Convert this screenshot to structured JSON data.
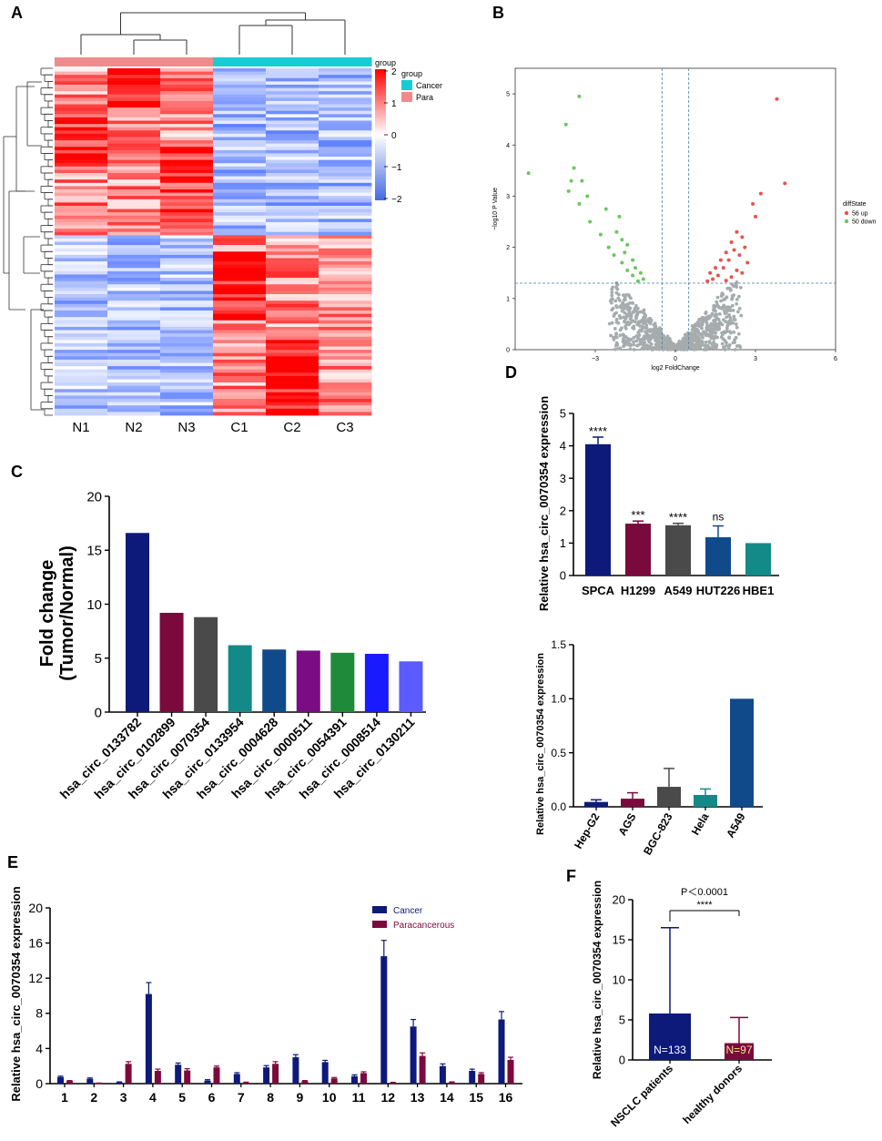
{
  "panels": {
    "A": "A",
    "B": "B",
    "C": "C",
    "D": "D",
    "E": "E",
    "F": "F"
  },
  "chart_data": [
    {
      "id": "A",
      "type": "heatmap",
      "columns": [
        "N1",
        "N2",
        "N3",
        "C1",
        "C2",
        "C3"
      ],
      "column_groups": [
        "Para",
        "Para",
        "Para",
        "Cancer",
        "Cancer",
        "Cancer"
      ],
      "legend_title": "group",
      "legend_entries": [
        "Cancer",
        "Para"
      ],
      "colorbar_title": "group",
      "colorbar_ticks": [
        "2",
        "1",
        "0",
        "−1",
        "−2"
      ],
      "colorbar_range": [
        -2,
        2
      ],
      "row_count": 106
    },
    {
      "id": "B",
      "type": "scatter",
      "xlabel": "log2 FoldChange",
      "ylabel": "−log10 P Value",
      "xlim": [
        -6,
        6
      ],
      "ylim": [
        0,
        5.5
      ],
      "xticks": [
        "−3",
        "0",
        "3",
        "6"
      ],
      "yticks": [
        "0",
        "1",
        "2",
        "3",
        "4",
        "5"
      ],
      "thresholds": {
        "x": [
          -0.5,
          0.5
        ],
        "y": 1.3
      },
      "legend_title": "diffState",
      "legend": [
        "56 up",
        "50 down"
      ],
      "colors": {
        "up": "#e8534f",
        "down": "#6cc65f",
        "ns": "#a6acad"
      },
      "up_points": [
        [
          3.8,
          4.9
        ],
        [
          4.1,
          3.25
        ],
        [
          3.2,
          3.05
        ],
        [
          2.9,
          2.85
        ],
        [
          3.0,
          2.6
        ],
        [
          2.3,
          2.3
        ],
        [
          2.5,
          2.2
        ],
        [
          2.1,
          2.1
        ],
        [
          2.6,
          2.0
        ],
        [
          2.2,
          1.95
        ],
        [
          1.9,
          1.9
        ],
        [
          2.4,
          1.85
        ],
        [
          2.0,
          1.75
        ],
        [
          1.7,
          1.75
        ],
        [
          2.7,
          1.7
        ],
        [
          1.5,
          1.6
        ],
        [
          1.8,
          1.6
        ],
        [
          2.3,
          1.55
        ],
        [
          1.3,
          1.5
        ],
        [
          1.6,
          1.45
        ],
        [
          2.1,
          1.42
        ],
        [
          1.4,
          1.38
        ],
        [
          1.9,
          1.35
        ],
        [
          2.5,
          1.5
        ],
        [
          1.2,
          1.34
        ]
      ],
      "down_points": [
        [
          -3.6,
          4.95
        ],
        [
          -4.1,
          4.4
        ],
        [
          -3.8,
          3.55
        ],
        [
          -5.5,
          3.45
        ],
        [
          -3.5,
          3.3
        ],
        [
          -3.9,
          3.3
        ],
        [
          -3.3,
          3.0
        ],
        [
          -4.0,
          3.1
        ],
        [
          -3.6,
          2.85
        ],
        [
          -2.6,
          2.75
        ],
        [
          -2.1,
          2.6
        ],
        [
          -3.2,
          2.5
        ],
        [
          -2.2,
          2.3
        ],
        [
          -2.8,
          2.25
        ],
        [
          -2.0,
          2.15
        ],
        [
          -1.8,
          2.05
        ],
        [
          -2.5,
          2.0
        ],
        [
          -1.9,
          1.9
        ],
        [
          -2.3,
          1.85
        ],
        [
          -1.6,
          1.75
        ],
        [
          -2.0,
          1.7
        ],
        [
          -1.5,
          1.6
        ],
        [
          -1.8,
          1.55
        ],
        [
          -1.3,
          1.5
        ],
        [
          -1.6,
          1.45
        ],
        [
          -1.2,
          1.38
        ],
        [
          -1.4,
          1.34
        ]
      ]
    },
    {
      "id": "C",
      "type": "bar",
      "ylabel": "Fold change (Tumor/Normal)",
      "ylabel_line1": "Fold change",
      "ylabel_line2": "(Tumor/Normal)",
      "ylim": [
        0,
        20
      ],
      "yticks": [
        "0",
        "5",
        "10",
        "15",
        "20"
      ],
      "categories": [
        "hsa_circ_0133782",
        "hsa_circ_0102899",
        "hsa_circ_0070354",
        "hsa_circ_0133954",
        "hsa_circ_0004628",
        "hsa_circ_0000511",
        "hsa_circ_0054391",
        "hsa_circ_0008514",
        "hsa_circ_0130211"
      ],
      "values": [
        16.6,
        9.2,
        8.8,
        6.2,
        5.8,
        5.7,
        5.5,
        5.4,
        4.7
      ],
      "colors": [
        "#0d1a7a",
        "#7b0a3c",
        "#4a4a4a",
        "#148a88",
        "#114a8a",
        "#7a0c84",
        "#1f8a3a",
        "#1a1aff",
        "#5b5bff"
      ]
    },
    {
      "id": "D1",
      "type": "bar",
      "ylabel": "Relative hsa_circ_0070354 expression",
      "ylim": [
        0,
        5
      ],
      "yticks": [
        "0",
        "1",
        "2",
        "3",
        "4",
        "5"
      ],
      "categories": [
        "SPCA",
        "H1299",
        "A549",
        "HUT226",
        "HBE1"
      ],
      "values": [
        4.05,
        1.6,
        1.55,
        1.18,
        1.0
      ],
      "errors": [
        0.22,
        0.08,
        0.06,
        0.35,
        0
      ],
      "significance": [
        "****",
        "***",
        "****",
        "ns",
        ""
      ],
      "colors": [
        "#0d1a7a",
        "#7b0a3c",
        "#4a4a4a",
        "#114a8a",
        "#148a88"
      ]
    },
    {
      "id": "D2",
      "type": "bar",
      "ylabel": "Relative hsa_circ_0070354 expression",
      "ylim": [
        0,
        1.5
      ],
      "yticks": [
        "0.0",
        "0.5",
        "1.0",
        "1.5"
      ],
      "categories": [
        "Hep-G2",
        "AGS",
        "BGC-823",
        "Hela",
        "A549"
      ],
      "values": [
        0.045,
        0.075,
        0.185,
        0.11,
        1.0
      ],
      "errors": [
        0.02,
        0.055,
        0.17,
        0.055,
        0
      ],
      "colors": [
        "#0d1a7a",
        "#7b0a3c",
        "#4a4a4a",
        "#148a88",
        "#114a8a"
      ]
    },
    {
      "id": "E",
      "type": "bar",
      "ylabel": "Relative hsa_circ_0070354 expression",
      "ylim": [
        0,
        20
      ],
      "yticks": [
        "0",
        "4",
        "8",
        "12",
        "16",
        "20"
      ],
      "categories": [
        "1",
        "2",
        "3",
        "4",
        "5",
        "6",
        "7",
        "8",
        "9",
        "10",
        "11",
        "12",
        "13",
        "14",
        "15",
        "16"
      ],
      "series": [
        {
          "name": "Cancer",
          "color": "#0d1a7a",
          "values": [
            0.75,
            0.55,
            0.15,
            10.2,
            2.15,
            0.35,
            1.1,
            1.85,
            3.0,
            2.45,
            0.85,
            14.5,
            6.5,
            2.0,
            1.45,
            7.3
          ],
          "errors": [
            0.1,
            0.1,
            0.05,
            1.3,
            0.2,
            0.1,
            0.15,
            0.2,
            0.3,
            0.2,
            0.15,
            1.8,
            0.8,
            0.25,
            0.2,
            0.9
          ]
        },
        {
          "name": "Paracancerous",
          "color": "#7b0a3c",
          "values": [
            0.3,
            0.05,
            2.25,
            1.45,
            1.5,
            1.85,
            0.12,
            2.25,
            0.3,
            0.6,
            1.2,
            0.1,
            3.15,
            0.15,
            1.1,
            2.7
          ],
          "errors": [
            0.05,
            0.02,
            0.25,
            0.2,
            0.2,
            0.15,
            0.05,
            0.25,
            0.05,
            0.1,
            0.15,
            0.05,
            0.35,
            0.05,
            0.15,
            0.3
          ]
        }
      ]
    },
    {
      "id": "F",
      "type": "bar",
      "ylabel": "Relative hsa_circ_0070354 expression",
      "ylim": [
        0,
        20
      ],
      "yticks": [
        "0",
        "5",
        "10",
        "15",
        "20"
      ],
      "categories": [
        "NSCLC patients",
        "healthy donors"
      ],
      "values": [
        5.8,
        2.1
      ],
      "errors": [
        10.7,
        3.2
      ],
      "n_labels": [
        "N=133",
        "N=97"
      ],
      "pvalue": "P＜0.0001",
      "significance": "****",
      "colors": [
        "#0d1a7a",
        "#7b0a3c"
      ]
    }
  ]
}
